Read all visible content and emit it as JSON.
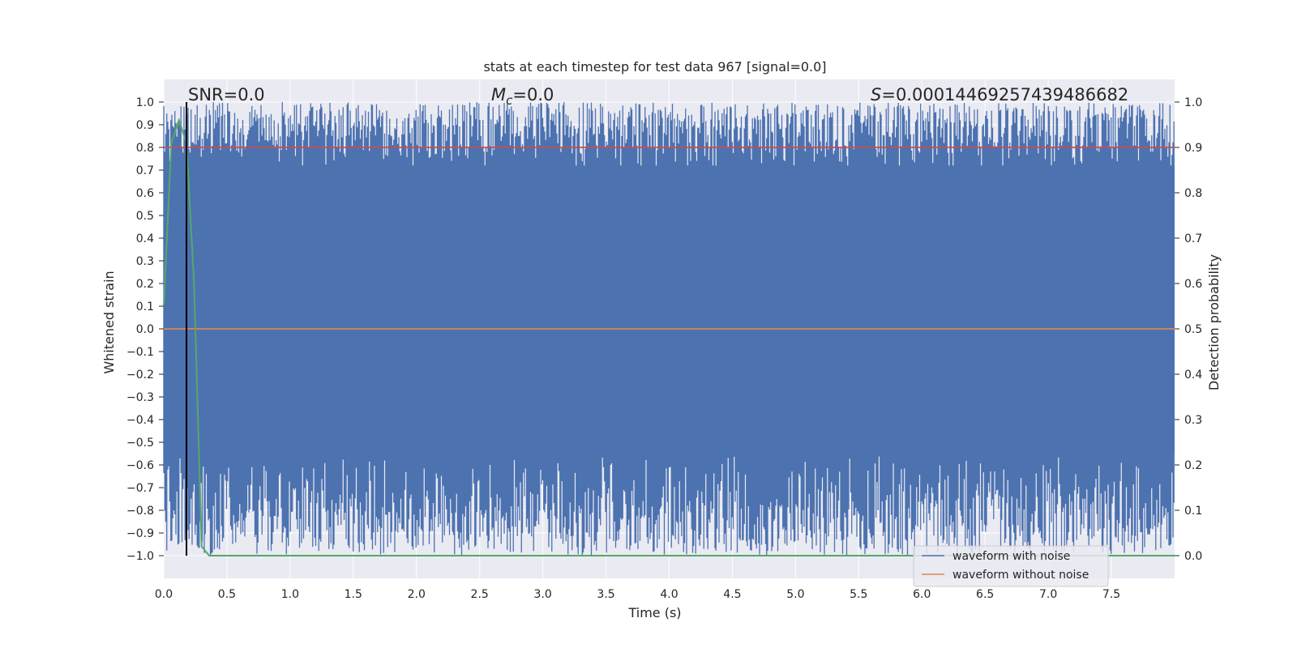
{
  "chart_data": {
    "type": "line",
    "title": "stats at each timestep for test data 967 [signal=0.0]",
    "xlabel": "Time (s)",
    "ylabel_left": "Whitened strain",
    "ylabel_right": "Detection probability",
    "xlim": [
      0.0,
      8.0
    ],
    "ylim_left": [
      -1.1,
      1.1
    ],
    "ylim_right": [
      -0.05,
      1.05
    ],
    "x_ticks": [
      "0.0",
      "0.5",
      "1.0",
      "1.5",
      "2.0",
      "2.5",
      "3.0",
      "3.5",
      "4.0",
      "4.5",
      "5.0",
      "5.5",
      "6.0",
      "6.5",
      "7.0",
      "7.5"
    ],
    "y_left_ticks": [
      "1.0",
      "0.9",
      "0.8",
      "0.7",
      "0.6",
      "0.5",
      "0.4",
      "0.3",
      "0.2",
      "0.1",
      "0.0",
      "−0.1",
      "−0.2",
      "−0.3",
      "−0.4",
      "−0.5",
      "−0.6",
      "−0.7",
      "−0.8",
      "−0.9",
      "−1.0"
    ],
    "y_right_ticks": [
      "1.0",
      "0.9",
      "0.8",
      "0.7",
      "0.6",
      "0.5",
      "0.4",
      "0.3",
      "0.2",
      "0.1",
      "0.0"
    ],
    "grid": true,
    "legend_position": "bottom-right",
    "annotations": {
      "snr": "SNR=0.0",
      "mc_symbol": "M",
      "mc_sub": "c",
      "mc_value": "=0.0",
      "s_symbol": "S",
      "s_value": "=0.00014469257439486682"
    },
    "marker_time": 0.18,
    "series": [
      {
        "name": "waveform with noise",
        "color": "#4c72b0",
        "axis": "left",
        "style": "dense-noise-band",
        "range": [
          -1.0,
          1.0
        ]
      },
      {
        "name": "waveform without noise",
        "color": "#dd8452",
        "axis": "left",
        "x": [
          0.0,
          8.0
        ],
        "values": [
          0.0,
          0.0
        ]
      },
      {
        "name": "detection threshold",
        "color": "#c44e52",
        "axis": "right",
        "x": [
          0.0,
          8.0
        ],
        "values": [
          0.9,
          0.9
        ]
      },
      {
        "name": "detection probability",
        "color": "#55a868",
        "axis": "right",
        "x": [
          0.0,
          0.06,
          0.12,
          0.18,
          0.24,
          0.3,
          0.36,
          0.42,
          8.0
        ],
        "values": [
          0.55,
          0.91,
          0.96,
          0.91,
          0.6,
          0.02,
          0.0,
          0.0,
          0.0
        ]
      }
    ],
    "legend": [
      {
        "label": "waveform with noise",
        "color": "#4c72b0"
      },
      {
        "label": "waveform without noise",
        "color": "#dd8452"
      }
    ]
  }
}
